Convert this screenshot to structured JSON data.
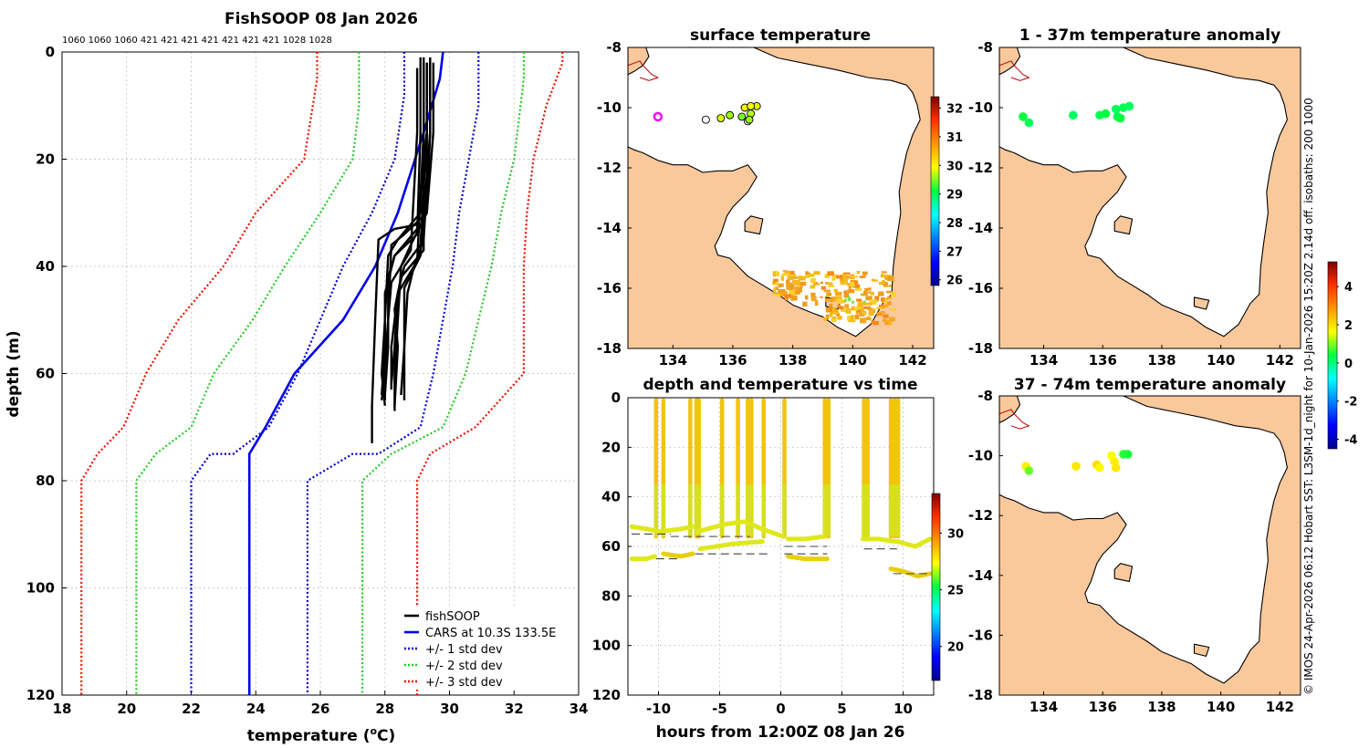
{
  "colors": {
    "land": "#f9c89b",
    "fishsoop": "#000000",
    "cars": "#0000ee",
    "std1": "#0000cc",
    "std2": "#22cc22",
    "std3": "#ee1100",
    "grid": "#bbbbbb"
  },
  "side_text": "© IMOS 24-Apr-2026 06:12 Hobart SST: L3SM-1d_night for 10-Jan-2026 15:20Z 2.14d off. isobaths: 200  1000",
  "chart_data": [
    {
      "id": "profile",
      "type": "line",
      "title": "FishSOOP 08 Jan 2026",
      "xlabel": "temperature (",
      "xlabel_sup": "o",
      "xlabel_tail": "C)",
      "ylabel": "depth (m)",
      "xlim": [
        18,
        34
      ],
      "ylim": [
        0,
        120
      ],
      "xticks": [
        "18",
        "20",
        "22",
        "24",
        "26",
        "28",
        "30",
        "32",
        "34"
      ],
      "yticks": [
        "0",
        "20",
        "40",
        "60",
        "80",
        "100",
        "120"
      ],
      "top_labels": "1060 1060 1060 421  421  421  421  421  421  421 1028 1028",
      "legend": {
        "placement": "bottom-right",
        "entries": [
          "fishSOOP",
          "CARS at 10.3S 133.5E",
          "+/- 1 std dev",
          "+/- 2 std dev",
          "+/- 3 std dev"
        ]
      },
      "series": [
        {
          "name": "CARS at 10.3S 133.5E",
          "temperature": [
            29.8,
            29.7,
            29.2,
            28.4,
            27.7,
            26.7,
            25.2,
            24.3,
            23.8,
            23.8,
            23.8
          ],
          "depth": [
            0,
            5,
            15,
            30,
            40,
            50,
            60,
            70,
            75,
            80,
            120
          ]
        },
        {
          "name": "+/- 1 std dev (cold)",
          "temperature": [
            28.6,
            28.6,
            28.3,
            27.6,
            26.7,
            26.0,
            25.3,
            24.4,
            23.3,
            22.6,
            22.0,
            22.0
          ],
          "depth": [
            0,
            8,
            20,
            30,
            40,
            50,
            60,
            70,
            75,
            75,
            80,
            120
          ]
        },
        {
          "name": "+/- 1 std dev (warm)",
          "temperature": [
            30.9,
            30.9,
            30.6,
            30.3,
            30.1,
            29.8,
            29.5,
            29.1,
            27.8,
            27.0,
            25.6,
            25.6
          ],
          "depth": [
            0,
            10,
            20,
            30,
            40,
            50,
            60,
            70,
            75,
            75,
            80,
            120
          ]
        },
        {
          "name": "+/- 2 std dev (cold)",
          "temperature": [
            27.2,
            27.2,
            27.0,
            26.0,
            24.9,
            23.9,
            22.7,
            22.0,
            20.9,
            20.3,
            20.3
          ],
          "depth": [
            0,
            10,
            20,
            30,
            40,
            50,
            60,
            70,
            75,
            80,
            120
          ]
        },
        {
          "name": "+/- 2 std dev (warm)",
          "temperature": [
            32.3,
            32.3,
            32.0,
            31.6,
            31.3,
            30.9,
            30.5,
            29.8,
            28.2,
            27.3,
            27.3
          ],
          "depth": [
            0,
            5,
            20,
            30,
            40,
            50,
            60,
            70,
            75,
            80,
            120
          ]
        },
        {
          "name": "+/- 3 std dev (cold)",
          "temperature": [
            25.9,
            25.9,
            25.5,
            24.0,
            23.0,
            21.6,
            20.6,
            19.9,
            19.1,
            18.6,
            18.6
          ],
          "depth": [
            0,
            5,
            20,
            30,
            40,
            50,
            60,
            70,
            75,
            80,
            120
          ]
        },
        {
          "name": "+/- 3 std dev (warm)",
          "temperature": [
            33.5,
            33.5,
            33.0,
            32.6,
            32.4,
            32.3,
            32.3,
            30.8,
            29.4,
            29.0,
            29.0
          ],
          "depth": [
            0,
            2,
            10,
            20,
            30,
            40,
            60,
            70,
            75,
            80,
            120
          ]
        }
      ],
      "fishsoop_profiles": [
        {
          "temperature": [
            29.3,
            29.3,
            29.3,
            29.2,
            28.3,
            27.8,
            27.7,
            27.6,
            27.6
          ],
          "depth": [
            2,
            15,
            25,
            32,
            33,
            35,
            50,
            66,
            73
          ]
        },
        {
          "temperature": [
            29.4,
            29.4,
            29.3,
            28.6,
            28.2,
            28.1,
            28.0,
            27.9
          ],
          "depth": [
            1,
            15,
            30,
            34,
            36,
            50,
            60,
            65
          ]
        },
        {
          "temperature": [
            29.2,
            29.2,
            29.1,
            28.4,
            28.1,
            28.0,
            27.9,
            28.0
          ],
          "depth": [
            2,
            15,
            30,
            35,
            38,
            50,
            60,
            66
          ]
        },
        {
          "temperature": [
            29.5,
            29.5,
            29.3,
            28.8,
            28.5,
            28.4,
            28.3,
            28.3
          ],
          "depth": [
            2,
            15,
            30,
            36,
            40,
            50,
            60,
            67
          ]
        },
        {
          "temperature": [
            29.3,
            29.3,
            29.0,
            28.3,
            28.1,
            28.1,
            28.0
          ],
          "depth": [
            3,
            15,
            33,
            38,
            42,
            55,
            64
          ]
        },
        {
          "temperature": [
            29.4,
            29.4,
            29.2,
            28.9,
            28.7,
            28.6,
            28.6
          ],
          "depth": [
            2,
            15,
            35,
            40,
            45,
            55,
            65
          ]
        },
        {
          "temperature": [
            29.1,
            29.1,
            29.0,
            28.3,
            28.0,
            28.0,
            27.9
          ],
          "depth": [
            1,
            15,
            34,
            38,
            45,
            55,
            64
          ]
        },
        {
          "temperature": [
            29.3,
            29.3,
            29.1,
            28.6,
            28.4,
            28.3,
            28.2
          ],
          "depth": [
            2,
            15,
            36,
            40,
            45,
            55,
            62
          ]
        },
        {
          "temperature": [
            29.2,
            29.2,
            29.2,
            28.5,
            28.3,
            28.4,
            28.3
          ],
          "depth": [
            1,
            15,
            37,
            42,
            48,
            55,
            66
          ]
        },
        {
          "temperature": [
            29.0,
            29.0,
            28.8,
            28.2,
            28.1,
            28.0,
            28.0
          ],
          "depth": [
            3,
            15,
            37,
            43,
            50,
            58,
            65
          ]
        },
        {
          "temperature": [
            29.4,
            29.4,
            29.1,
            28.6,
            28.6,
            28.5
          ],
          "depth": [
            2,
            15,
            38,
            44,
            55,
            64
          ]
        },
        {
          "temperature": [
            29.2,
            29.2,
            29.0,
            28.4,
            28.2,
            28.2
          ],
          "depth": [
            2,
            15,
            39,
            45,
            55,
            63
          ]
        }
      ]
    },
    {
      "id": "sst_map",
      "type": "map",
      "title": "surface temperature",
      "xlim": [
        132.5,
        142.7
      ],
      "ylim": [
        -18,
        -8
      ],
      "xticks": [
        "134",
        "136",
        "138",
        "140",
        "142"
      ],
      "yticks": [
        "-8",
        "-10",
        "-12",
        "-14",
        "-16",
        "-18"
      ],
      "colorbar": {
        "min": 25.8,
        "max": 32.4,
        "ticks": [
          "26",
          "27",
          "28",
          "29",
          "30",
          "31",
          "32"
        ]
      },
      "stations": [
        {
          "lon": 135.1,
          "lat": -10.4,
          "value": 0
        },
        {
          "lon": 135.6,
          "lat": -10.35,
          "value": 29.8
        },
        {
          "lon": 135.9,
          "lat": -10.25,
          "value": 29.6
        },
        {
          "lon": 136.3,
          "lat": -10.3,
          "value": 29.5
        },
        {
          "lon": 136.4,
          "lat": -10.0,
          "value": 29.9
        },
        {
          "lon": 136.6,
          "lat": -10.2,
          "value": 29.7
        },
        {
          "lon": 136.8,
          "lat": -9.95,
          "value": 29.8
        },
        {
          "lon": 136.6,
          "lat": -9.95,
          "value": 29.9
        },
        {
          "lon": 136.5,
          "lat": -10.45,
          "value": 0
        },
        {
          "lon": 136.55,
          "lat": -10.4,
          "value": 29.6
        }
      ],
      "cars_location": {
        "lon": 133.5,
        "lat": -10.3
      }
    },
    {
      "id": "anom_shallow",
      "type": "map",
      "title": "1 - 37m temperature anomaly",
      "xlim": [
        132.5,
        142.7
      ],
      "ylim": [
        -18,
        -8
      ],
      "xticks": [
        "134",
        "136",
        "138",
        "140",
        "142"
      ],
      "yticks": [
        "-8",
        "-10",
        "-12",
        "-14",
        "-16",
        "-18"
      ],
      "stations": [
        {
          "lon": 133.3,
          "lat": -10.3,
          "value": 0.4
        },
        {
          "lon": 133.5,
          "lat": -10.5,
          "value": 0.3
        },
        {
          "lon": 135.0,
          "lat": -10.25,
          "value": 0.2
        },
        {
          "lon": 135.9,
          "lat": -10.25,
          "value": 0.3
        },
        {
          "lon": 136.1,
          "lat": -10.2,
          "value": 0.4
        },
        {
          "lon": 136.45,
          "lat": -10.05,
          "value": 0.2
        },
        {
          "lon": 136.5,
          "lat": -10.3,
          "value": 0.3
        },
        {
          "lon": 136.6,
          "lat": -10.35,
          "value": 0.4
        },
        {
          "lon": 136.7,
          "lat": -10.0,
          "value": 0.3
        },
        {
          "lon": 136.9,
          "lat": -9.95,
          "value": 0.2
        }
      ]
    },
    {
      "id": "time_series",
      "type": "scatter",
      "title": "depth and temperature vs time",
      "xlabel": "hours from 12:00Z 08 Jan 26",
      "xlim": [
        -12.5,
        12.5
      ],
      "ylim": [
        0,
        120
      ],
      "xticks": [
        "-10",
        "-5",
        "0",
        "5",
        "10"
      ],
      "yticks": [
        "0",
        "20",
        "40",
        "60",
        "80",
        "100",
        "120"
      ],
      "colorbar": {
        "min": 17,
        "max": 33.5,
        "ticks": [
          "20",
          "25",
          "30"
        ]
      },
      "segments": [
        {
          "time": [
            -12.2,
            -11.0,
            -10.3
          ],
          "depth": [
            65,
            65,
            64
          ]
        },
        {
          "time": [
            -12.2,
            -10.9,
            -9.9,
            -8.2,
            -7.2
          ],
          "depth": [
            52,
            53,
            54,
            53,
            52
          ]
        },
        {
          "time": [
            -9.6,
            -8.2,
            -7.2
          ],
          "depth": [
            63,
            64,
            63
          ]
        },
        {
          "time": [
            -6.8,
            -4.5,
            -3.0,
            -1.5,
            0.2
          ],
          "depth": [
            54,
            51,
            50,
            53,
            56
          ]
        },
        {
          "time": [
            -6.6,
            -4.0,
            -1.5
          ],
          "depth": [
            61,
            59,
            58
          ]
        },
        {
          "time": [
            0.6,
            2.0,
            3.8
          ],
          "depth": [
            64,
            65,
            65
          ]
        },
        {
          "time": [
            0.6,
            2.0,
            3.5
          ],
          "depth": [
            57,
            57,
            56
          ]
        },
        {
          "time": [
            6.7,
            8.0,
            9.3
          ],
          "depth": [
            57,
            57,
            58
          ]
        },
        {
          "time": [
            9.0,
            10.0,
            11.2,
            12.2
          ],
          "depth": [
            69,
            70,
            72,
            71
          ]
        },
        {
          "time": [
            9.5,
            11.0,
            12.2
          ],
          "depth": [
            58,
            60,
            57
          ]
        }
      ],
      "casts": [
        -10.2,
        -9.6,
        -7.4,
        -6.9,
        -6.7,
        -4.8,
        -3.5,
        -2.7,
        -2.4,
        -1.4,
        0.3,
        3.6,
        3.9,
        6.8,
        7.1,
        9.0,
        9.3,
        9.6
      ]
    },
    {
      "id": "anom_deep",
      "type": "map",
      "title": "37 - 74m temperature anomaly",
      "xlim": [
        132.5,
        142.7
      ],
      "ylim": [
        -18,
        -8
      ],
      "xticks": [
        "134",
        "136",
        "138",
        "140",
        "142"
      ],
      "yticks": [
        "-8",
        "-10",
        "-12",
        "-14",
        "-16",
        "-18"
      ],
      "colorbar": {
        "min": -4.5,
        "max": 5.3,
        "ticks": [
          "-4",
          "-2",
          "0",
          "2",
          "4"
        ]
      },
      "stations": [
        {
          "lon": 133.4,
          "lat": -10.35,
          "value": 1.8
        },
        {
          "lon": 133.5,
          "lat": -10.5,
          "value": 0.9
        },
        {
          "lon": 135.1,
          "lat": -10.35,
          "value": 1.9
        },
        {
          "lon": 135.8,
          "lat": -10.3,
          "value": 2.0
        },
        {
          "lon": 135.9,
          "lat": -10.4,
          "value": 1.7
        },
        {
          "lon": 136.3,
          "lat": -10.0,
          "value": 1.6
        },
        {
          "lon": 136.4,
          "lat": -10.2,
          "value": 1.8
        },
        {
          "lon": 136.45,
          "lat": -10.4,
          "value": 1.9
        },
        {
          "lon": 136.7,
          "lat": -9.95,
          "value": 0.6
        },
        {
          "lon": 136.85,
          "lat": -9.95,
          "value": 0.5
        }
      ]
    }
  ]
}
